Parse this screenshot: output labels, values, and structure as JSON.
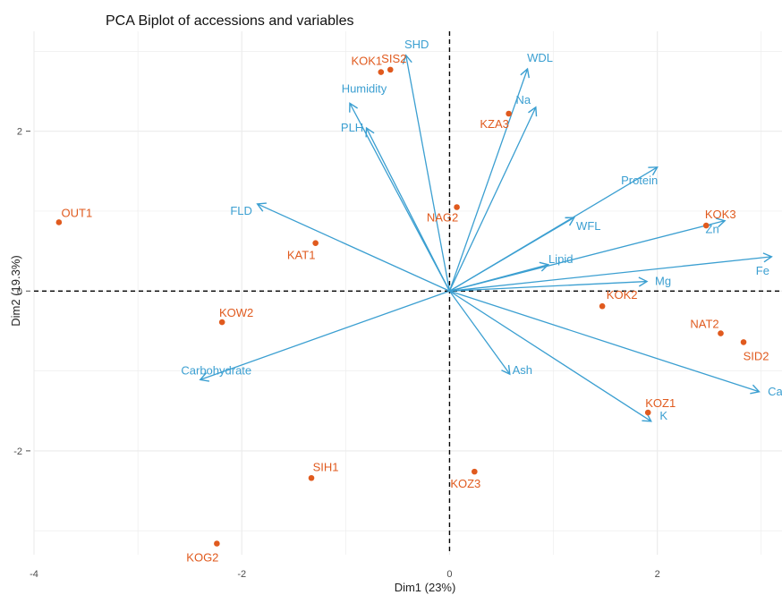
{
  "chart_data": {
    "type": "scatter",
    "title": "PCA Biplot of accessions and variables",
    "xlabel": "Dim1 (23%)",
    "ylabel": "Dim2 (19.3%)",
    "xlim": [
      -4.0,
      3.2
    ],
    "ylim": [
      -3.3,
      3.25
    ],
    "x_ticks": [
      -4,
      -2,
      0,
      2
    ],
    "y_ticks": [
      -2,
      0,
      2
    ],
    "grid": true,
    "colors": {
      "individuals": "#e05a1e",
      "variables": "#3b9fd1",
      "grid": "#ebebeb",
      "reference_line": "#000000"
    },
    "individuals": [
      {
        "name": "OUT1",
        "x": -3.76,
        "y": 0.86
      },
      {
        "name": "KOW2",
        "x": -2.19,
        "y": -0.39
      },
      {
        "name": "KAT1",
        "x": -1.29,
        "y": 0.6
      },
      {
        "name": "SIH1",
        "x": -1.33,
        "y": -2.34
      },
      {
        "name": "KOG2",
        "x": -2.24,
        "y": -3.16
      },
      {
        "name": "KOK1",
        "x": -0.66,
        "y": 2.74
      },
      {
        "name": "SIS2",
        "x": -0.57,
        "y": 2.77
      },
      {
        "name": "KZA3",
        "x": 0.57,
        "y": 2.22
      },
      {
        "name": "NAG2",
        "x": 0.07,
        "y": 1.05
      },
      {
        "name": "KOZ3",
        "x": 0.24,
        "y": -2.26
      },
      {
        "name": "KOK2",
        "x": 1.47,
        "y": -0.19
      },
      {
        "name": "KOK3",
        "x": 2.47,
        "y": 0.82
      },
      {
        "name": "NAT2",
        "x": 2.61,
        "y": -0.53
      },
      {
        "name": "SID2",
        "x": 2.83,
        "y": -0.64
      },
      {
        "name": "KOZ1",
        "x": 1.91,
        "y": -1.52
      }
    ],
    "variables": [
      {
        "name": "SHD",
        "x": -0.42,
        "y": 2.95
      },
      {
        "name": "Humidity",
        "x": -0.96,
        "y": 2.35
      },
      {
        "name": "PLH",
        "x": -0.8,
        "y": 2.04
      },
      {
        "name": "WDL",
        "x": 0.75,
        "y": 2.78
      },
      {
        "name": "Na",
        "x": 0.83,
        "y": 2.3
      },
      {
        "name": "Protein",
        "x": 2.0,
        "y": 1.55
      },
      {
        "name": "WFL",
        "x": 1.2,
        "y": 0.92
      },
      {
        "name": "Zn",
        "x": 2.65,
        "y": 0.88
      },
      {
        "name": "Lipid",
        "x": 0.95,
        "y": 0.33
      },
      {
        "name": "Mg",
        "x": 1.9,
        "y": 0.12
      },
      {
        "name": "Fe",
        "x": 3.1,
        "y": 0.43
      },
      {
        "name": "FLD",
        "x": -1.85,
        "y": 1.09
      },
      {
        "name": "Carbohydrate",
        "x": -2.4,
        "y": -1.11
      },
      {
        "name": "Ash",
        "x": 0.58,
        "y": -1.04
      },
      {
        "name": "Ca",
        "x": 2.98,
        "y": -1.26
      },
      {
        "name": "K",
        "x": 1.94,
        "y": -1.63
      }
    ]
  }
}
